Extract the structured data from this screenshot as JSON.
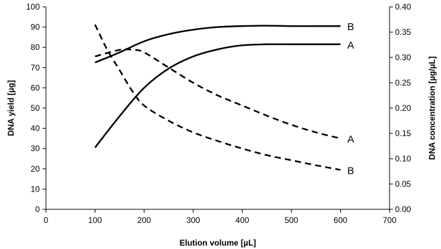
{
  "chart_data": {
    "type": "line",
    "xlabel": "Elution volume [µL]",
    "ylabel": "DNA yield [µg]",
    "ylabel_right": "DNA concentration [µg/µL]",
    "xlim": [
      0,
      700
    ],
    "ylim": [
      0,
      100
    ],
    "ylim_right": [
      0,
      0.4
    ],
    "x_ticks": [
      "0",
      "100",
      "200",
      "300",
      "400",
      "500",
      "600",
      "700"
    ],
    "y_ticks": [
      "0",
      "10",
      "20",
      "30",
      "40",
      "50",
      "60",
      "70",
      "80",
      "90",
      "100"
    ],
    "y_right_ticks": [
      "0.00",
      "0.05",
      "0.10",
      "0.15",
      "0.20",
      "0.25",
      "0.30",
      "0.35",
      "0.40"
    ],
    "grid": false,
    "series": [
      {
        "label": "B",
        "axis": "left",
        "style": "solid",
        "points": [
          [
            100,
            72.5
          ],
          [
            150,
            77.5
          ],
          [
            200,
            83
          ],
          [
            250,
            86.5
          ],
          [
            300,
            88.7
          ],
          [
            350,
            90
          ],
          [
            400,
            90.5
          ],
          [
            450,
            90.7
          ],
          [
            500,
            90.5
          ],
          [
            550,
            90.5
          ],
          [
            600,
            90.5
          ]
        ]
      },
      {
        "label": "A",
        "axis": "left",
        "style": "solid",
        "points": [
          [
            100,
            30.5
          ],
          [
            150,
            46
          ],
          [
            200,
            60
          ],
          [
            250,
            69.5
          ],
          [
            300,
            75.5
          ],
          [
            350,
            79
          ],
          [
            400,
            81
          ],
          [
            450,
            81.5
          ],
          [
            500,
            81.5
          ],
          [
            550,
            81.5
          ],
          [
            600,
            81.5
          ]
        ]
      },
      {
        "label": "A",
        "axis": "right",
        "style": "dashed",
        "points": [
          [
            100,
            0.302
          ],
          [
            150,
            0.315
          ],
          [
            180,
            0.315
          ],
          [
            200,
            0.31
          ],
          [
            250,
            0.28
          ],
          [
            300,
            0.25
          ],
          [
            350,
            0.225
          ],
          [
            400,
            0.205
          ],
          [
            450,
            0.185
          ],
          [
            500,
            0.167
          ],
          [
            550,
            0.152
          ],
          [
            600,
            0.14
          ]
        ]
      },
      {
        "label": "B",
        "axis": "right",
        "style": "dashed",
        "points": [
          [
            100,
            0.365
          ],
          [
            125,
            0.315
          ],
          [
            150,
            0.275
          ],
          [
            175,
            0.235
          ],
          [
            200,
            0.205
          ],
          [
            250,
            0.175
          ],
          [
            300,
            0.152
          ],
          [
            350,
            0.135
          ],
          [
            400,
            0.12
          ],
          [
            450,
            0.107
          ],
          [
            500,
            0.097
          ],
          [
            550,
            0.087
          ],
          [
            600,
            0.078
          ]
        ]
      }
    ]
  }
}
